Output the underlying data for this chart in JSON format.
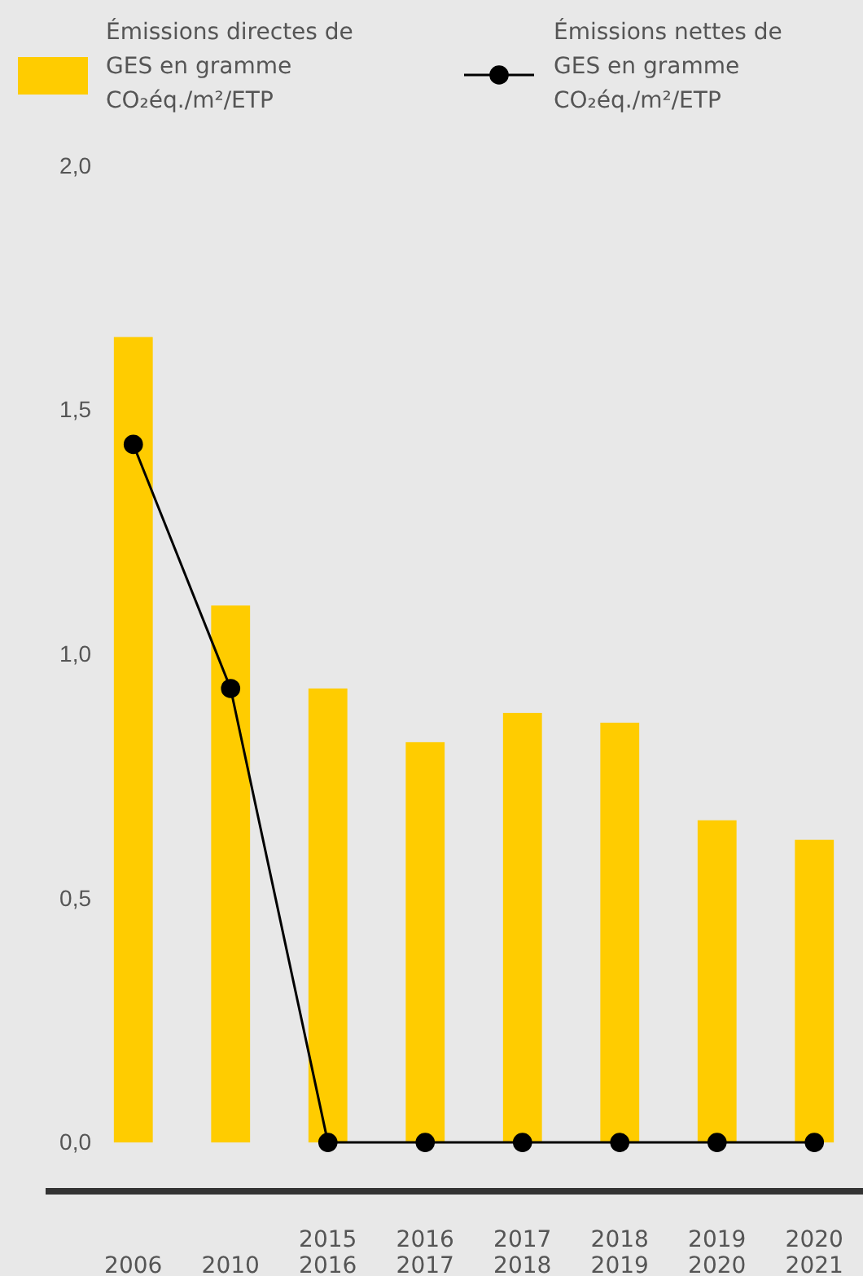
{
  "chart_data": {
    "type": "bar",
    "categories": [
      "2006",
      "2010",
      "2015\n2016",
      "2016\n2017",
      "2017\n2018",
      "2018\n2019",
      "2019\n2020",
      "2020\n2021"
    ],
    "series": [
      {
        "name": "Émissions directes de GES en gramme CO₂éq./m²/ETP",
        "color": "#ffcc00",
        "values": [
          1.65,
          1.1,
          0.93,
          0.82,
          0.88,
          0.86,
          0.66,
          0.62
        ]
      },
      {
        "name": "Émissions nettes de GES en gramme CO₂éq./m²/ETP",
        "type": "line",
        "color": "#000000",
        "marker": "circle",
        "values": [
          1.43,
          0.93,
          0,
          0,
          0,
          0,
          0,
          0
        ]
      }
    ],
    "ylim": [
      -0.1,
      2.0
    ],
    "yticks": [
      {
        "value": 0,
        "label": "0,0"
      },
      {
        "value": 0.5,
        "label": "0,5"
      },
      {
        "value": 1,
        "label": "1,0"
      },
      {
        "value": 1.5,
        "label": "1,5"
      },
      {
        "value": 2,
        "label": "2,0"
      }
    ],
    "grid": false,
    "legend": "top"
  }
}
